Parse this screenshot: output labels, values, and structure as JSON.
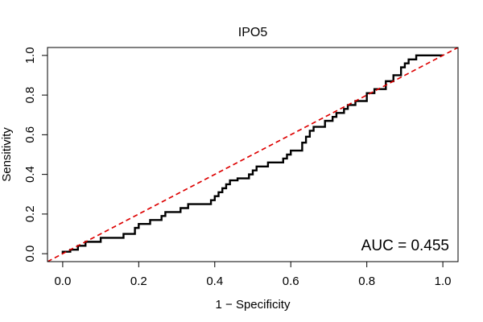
{
  "chart_data": {
    "type": "line",
    "title": "IPO5",
    "xlabel": "1 − Specificity",
    "ylabel": "Sensitivity",
    "xlim": [
      -0.04,
      1.04
    ],
    "ylim": [
      -0.04,
      1.04
    ],
    "xticks": [
      0.0,
      0.2,
      0.4,
      0.6,
      0.8,
      1.0
    ],
    "yticks": [
      0.0,
      0.2,
      0.4,
      0.6,
      0.8,
      1.0
    ],
    "xtick_labels": [
      "0.0",
      "0.2",
      "0.4",
      "0.6",
      "0.8",
      "1.0"
    ],
    "ytick_labels": [
      "0.0",
      "0.2",
      "0.4",
      "0.6",
      "0.8",
      "1.0"
    ],
    "annotation": "AUC = 0.455",
    "grid": false,
    "series": [
      {
        "color": "#000000",
        "style": "solid-step",
        "points": [
          [
            0.0,
            0.0
          ],
          [
            0.0,
            0.01
          ],
          [
            0.02,
            0.01
          ],
          [
            0.02,
            0.02
          ],
          [
            0.04,
            0.02
          ],
          [
            0.04,
            0.04
          ],
          [
            0.06,
            0.04
          ],
          [
            0.06,
            0.06
          ],
          [
            0.1,
            0.06
          ],
          [
            0.1,
            0.08
          ],
          [
            0.16,
            0.08
          ],
          [
            0.16,
            0.1
          ],
          [
            0.19,
            0.1
          ],
          [
            0.19,
            0.13
          ],
          [
            0.2,
            0.13
          ],
          [
            0.2,
            0.15
          ],
          [
            0.23,
            0.15
          ],
          [
            0.23,
            0.17
          ],
          [
            0.26,
            0.17
          ],
          [
            0.26,
            0.19
          ],
          [
            0.27,
            0.19
          ],
          [
            0.27,
            0.21
          ],
          [
            0.31,
            0.21
          ],
          [
            0.31,
            0.23
          ],
          [
            0.33,
            0.23
          ],
          [
            0.33,
            0.25
          ],
          [
            0.39,
            0.25
          ],
          [
            0.39,
            0.27
          ],
          [
            0.4,
            0.27
          ],
          [
            0.4,
            0.29
          ],
          [
            0.41,
            0.29
          ],
          [
            0.41,
            0.31
          ],
          [
            0.42,
            0.31
          ],
          [
            0.42,
            0.33
          ],
          [
            0.43,
            0.33
          ],
          [
            0.43,
            0.35
          ],
          [
            0.44,
            0.35
          ],
          [
            0.44,
            0.37
          ],
          [
            0.46,
            0.37
          ],
          [
            0.46,
            0.38
          ],
          [
            0.49,
            0.38
          ],
          [
            0.49,
            0.4
          ],
          [
            0.5,
            0.4
          ],
          [
            0.5,
            0.42
          ],
          [
            0.51,
            0.42
          ],
          [
            0.51,
            0.44
          ],
          [
            0.54,
            0.44
          ],
          [
            0.54,
            0.46
          ],
          [
            0.58,
            0.46
          ],
          [
            0.58,
            0.48
          ],
          [
            0.59,
            0.48
          ],
          [
            0.59,
            0.5
          ],
          [
            0.6,
            0.5
          ],
          [
            0.6,
            0.52
          ],
          [
            0.63,
            0.52
          ],
          [
            0.63,
            0.56
          ],
          [
            0.64,
            0.56
          ],
          [
            0.64,
            0.59
          ],
          [
            0.65,
            0.59
          ],
          [
            0.65,
            0.62
          ],
          [
            0.66,
            0.62
          ],
          [
            0.66,
            0.64
          ],
          [
            0.69,
            0.64
          ],
          [
            0.69,
            0.67
          ],
          [
            0.71,
            0.67
          ],
          [
            0.71,
            0.69
          ],
          [
            0.72,
            0.69
          ],
          [
            0.72,
            0.71
          ],
          [
            0.74,
            0.71
          ],
          [
            0.74,
            0.73
          ],
          [
            0.75,
            0.73
          ],
          [
            0.75,
            0.75
          ],
          [
            0.77,
            0.75
          ],
          [
            0.77,
            0.77
          ],
          [
            0.8,
            0.77
          ],
          [
            0.8,
            0.81
          ],
          [
            0.82,
            0.81
          ],
          [
            0.82,
            0.83
          ],
          [
            0.85,
            0.83
          ],
          [
            0.85,
            0.87
          ],
          [
            0.87,
            0.87
          ],
          [
            0.87,
            0.9
          ],
          [
            0.89,
            0.9
          ],
          [
            0.89,
            0.94
          ],
          [
            0.9,
            0.94
          ],
          [
            0.9,
            0.96
          ],
          [
            0.91,
            0.96
          ],
          [
            0.91,
            0.98
          ],
          [
            0.93,
            0.98
          ],
          [
            0.93,
            1.0
          ],
          [
            1.0,
            1.0
          ]
        ]
      },
      {
        "color": "#dd0000",
        "style": "dashed",
        "points": [
          [
            -0.04,
            -0.04
          ],
          [
            1.04,
            1.04
          ]
        ]
      }
    ]
  }
}
